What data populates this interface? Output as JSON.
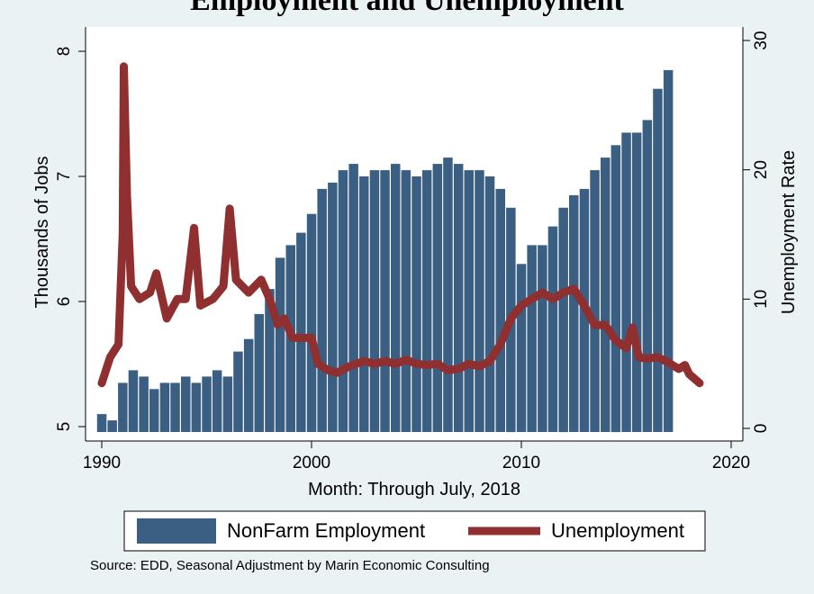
{
  "page_title": "Employment and Unemployment",
  "chart_data": {
    "type": "bar",
    "title": "Employment and Unemployment",
    "xlabel": "Month: Through July, 2018",
    "ylabel_left": "Thousands of Jobs",
    "ylabel_right": "Unemployment Rate",
    "x_ticks": [
      "1990",
      "2000",
      "2010",
      "2020"
    ],
    "x_range": [
      1990,
      2020
    ],
    "y_left_ticks": [
      "5",
      "6",
      "7",
      "8"
    ],
    "y_left_range": [
      5,
      8
    ],
    "y_right_ticks": [
      "0",
      "10",
      "20",
      "30"
    ],
    "y_right_range": [
      0,
      30
    ],
    "grid": false,
    "legend_position": "bottom",
    "note": "Source: EDD, Seasonal Adjustment by Marin Economic Consulting",
    "colors": {
      "bars": "#3b5f82",
      "line": "#8f2f2f",
      "background": "#eaf2f3"
    },
    "series": [
      {
        "name": "NonFarm Employment",
        "kind": "bar",
        "axis": "left",
        "points": [
          [
            1990.0,
            5.1
          ],
          [
            1990.5,
            5.05
          ],
          [
            1991.0,
            5.35
          ],
          [
            1991.5,
            5.45
          ],
          [
            1992.0,
            5.4
          ],
          [
            1992.5,
            5.3
          ],
          [
            1993.0,
            5.35
          ],
          [
            1993.5,
            5.35
          ],
          [
            1994.0,
            5.4
          ],
          [
            1994.5,
            5.35
          ],
          [
            1995.0,
            5.4
          ],
          [
            1995.5,
            5.45
          ],
          [
            1996.0,
            5.4
          ],
          [
            1996.5,
            5.6
          ],
          [
            1997.0,
            5.7
          ],
          [
            1997.5,
            5.9
          ],
          [
            1998.0,
            6.1
          ],
          [
            1998.5,
            6.35
          ],
          [
            1999.0,
            6.45
          ],
          [
            1999.5,
            6.55
          ],
          [
            2000.0,
            6.7
          ],
          [
            2000.5,
            6.9
          ],
          [
            2001.0,
            6.95
          ],
          [
            2001.5,
            7.05
          ],
          [
            2002.0,
            7.1
          ],
          [
            2002.5,
            7.0
          ],
          [
            2003.0,
            7.05
          ],
          [
            2003.5,
            7.05
          ],
          [
            2004.0,
            7.1
          ],
          [
            2004.5,
            7.05
          ],
          [
            2005.0,
            7.0
          ],
          [
            2005.5,
            7.05
          ],
          [
            2006.0,
            7.1
          ],
          [
            2006.5,
            7.15
          ],
          [
            2007.0,
            7.1
          ],
          [
            2007.5,
            7.05
          ],
          [
            2008.0,
            7.05
          ],
          [
            2008.5,
            7.0
          ],
          [
            2009.0,
            6.9
          ],
          [
            2009.5,
            6.75
          ],
          [
            2010.0,
            6.3
          ],
          [
            2010.5,
            6.45
          ],
          [
            2011.0,
            6.45
          ],
          [
            2011.5,
            6.6
          ],
          [
            2012.0,
            6.75
          ],
          [
            2012.5,
            6.85
          ],
          [
            2013.0,
            6.9
          ],
          [
            2013.5,
            7.05
          ],
          [
            2014.0,
            7.15
          ],
          [
            2014.5,
            7.25
          ],
          [
            2015.0,
            7.35
          ],
          [
            2015.5,
            7.35
          ],
          [
            2016.0,
            7.45
          ],
          [
            2016.5,
            7.7
          ],
          [
            2017.0,
            7.85
          ]
        ]
      },
      {
        "name": "Unemployment",
        "kind": "line",
        "axis": "right",
        "points": [
          [
            1990.0,
            3.5
          ],
          [
            1990.4,
            5.5
          ],
          [
            1990.8,
            6.5
          ],
          [
            1991.0,
            15
          ],
          [
            1991.05,
            28
          ],
          [
            1991.2,
            18
          ],
          [
            1991.4,
            11
          ],
          [
            1991.8,
            10
          ],
          [
            1992.3,
            10.5
          ],
          [
            1992.6,
            12
          ],
          [
            1993.1,
            8.5
          ],
          [
            1993.6,
            10
          ],
          [
            1994.0,
            10
          ],
          [
            1994.4,
            15.5
          ],
          [
            1994.7,
            9.5
          ],
          [
            1995.3,
            10
          ],
          [
            1995.8,
            11
          ],
          [
            1996.1,
            17
          ],
          [
            1996.4,
            11.5
          ],
          [
            1997.0,
            10.5
          ],
          [
            1997.6,
            11.5
          ],
          [
            1998.0,
            10
          ],
          [
            1998.4,
            8
          ],
          [
            1998.7,
            8.5
          ],
          [
            1999.1,
            7
          ],
          [
            1999.5,
            7
          ],
          [
            2000.0,
            7
          ],
          [
            2000.3,
            5
          ],
          [
            2000.8,
            4.5
          ],
          [
            2001.2,
            4.3
          ],
          [
            2001.8,
            4.8
          ],
          [
            2002.5,
            5.2
          ],
          [
            2003.0,
            5
          ],
          [
            2003.5,
            5.2
          ],
          [
            2004.0,
            5
          ],
          [
            2004.5,
            5.3
          ],
          [
            2005.0,
            5
          ],
          [
            2005.5,
            4.9
          ],
          [
            2006.0,
            5
          ],
          [
            2006.5,
            4.5
          ],
          [
            2007.0,
            4.6
          ],
          [
            2007.5,
            5
          ],
          [
            2008.0,
            4.8
          ],
          [
            2008.5,
            5.2
          ],
          [
            2009.0,
            6.5
          ],
          [
            2009.5,
            8.5
          ],
          [
            2010.0,
            9.5
          ],
          [
            2010.5,
            10
          ],
          [
            2011.0,
            10.5
          ],
          [
            2011.5,
            10
          ],
          [
            2012.0,
            10.5
          ],
          [
            2012.5,
            10.8
          ],
          [
            2013.0,
            9.5
          ],
          [
            2013.5,
            8
          ],
          [
            2014.0,
            8
          ],
          [
            2014.5,
            6.8
          ],
          [
            2015.0,
            6.2
          ],
          [
            2015.3,
            7.8
          ],
          [
            2015.6,
            5.5
          ],
          [
            2016.0,
            5.4
          ],
          [
            2016.5,
            5.5
          ],
          [
            2017.0,
            5.1
          ],
          [
            2017.5,
            4.6
          ],
          [
            2017.8,
            4.9
          ],
          [
            2018.0,
            4.2
          ],
          [
            2018.5,
            3.5
          ]
        ]
      }
    ]
  }
}
